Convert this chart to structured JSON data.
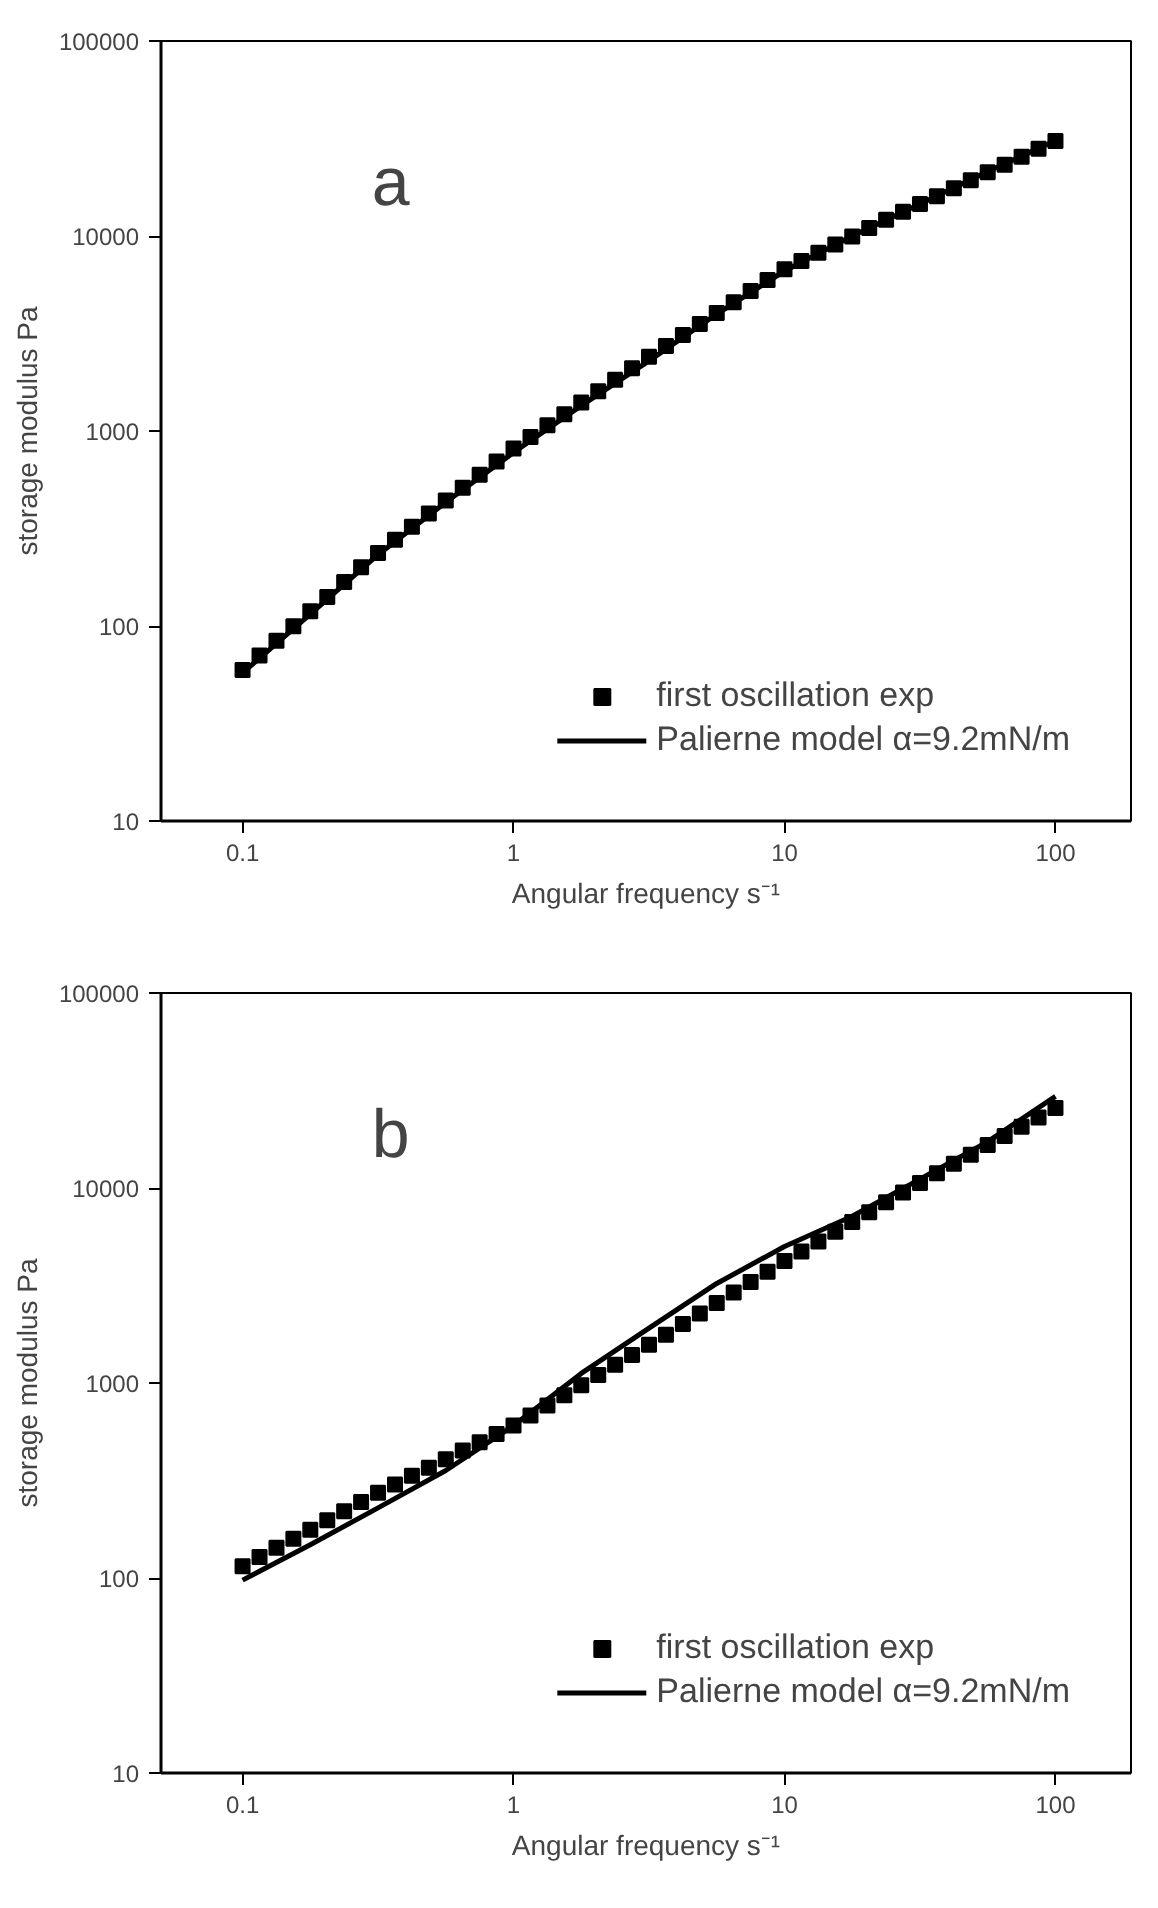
{
  "chart_data": [
    {
      "type": "scatter",
      "xlabel": "Angular frequency s⁻¹",
      "ylabel": "storage modulus Pa",
      "annotations": [
        "a"
      ],
      "log": "xy",
      "grid": false,
      "legend": "bottom right",
      "xlim": [
        0.05,
        190
      ],
      "ylim": [
        10,
        100000
      ],
      "xticks": [
        0.1,
        1,
        10,
        100
      ],
      "yticks": [
        10,
        100,
        1000,
        10000,
        100000
      ],
      "series": [
        {
          "name": "first oscillation exp",
          "type": "scatter",
          "marker": "square",
          "color": "#000000",
          "x": [
            0.1,
            0.1155,
            0.1334,
            0.154,
            0.1778,
            0.2054,
            0.2371,
            0.2738,
            0.3162,
            0.3652,
            0.4217,
            0.487,
            0.5623,
            0.6494,
            0.7499,
            0.866,
            1,
            1.155,
            1.334,
            1.54,
            1.778,
            2.054,
            2.371,
            2.738,
            3.162,
            3.652,
            4.217,
            4.87,
            5.623,
            6.494,
            7.499,
            8.66,
            10,
            11.55,
            13.34,
            15.4,
            17.78,
            20.54,
            23.71,
            27.38,
            31.62,
            36.52,
            42.17,
            48.7,
            56.23,
            64.94,
            74.99,
            86.6,
            100
          ],
          "values": [
            59.4,
            70.6,
            84.0,
            99.8,
            119,
            141,
            168,
            200,
            237,
            277,
            323,
            377,
            440,
            512,
            597,
            697,
            813,
            931,
            1070,
            1220,
            1400,
            1600,
            1830,
            2100,
            2400,
            2730,
            3110,
            3540,
            4030,
            4580,
            5220,
            5940,
            6760,
            7450,
            8200,
            9040,
            9950,
            11000,
            12100,
            13300,
            14600,
            16000,
            17600,
            19300,
            21200,
            23200,
            25500,
            28000,
            30700
          ]
        },
        {
          "name": "Palierne model α=9.2mN/m",
          "type": "line",
          "line_style": "solid",
          "color": "#000000",
          "x": [
            0.1,
            0.1778,
            0.3162,
            0.5623,
            1,
            1.778,
            3.162,
            5.623,
            10,
            17.78,
            31.62,
            56.23,
            100
          ],
          "values": [
            57.5,
            115,
            232,
            431,
            776,
            1350,
            2290,
            3980,
            6610,
            10000,
            14600,
            21400,
            30900
          ]
        }
      ]
    },
    {
      "type": "scatter",
      "xlabel": "Angular frequency s⁻¹",
      "ylabel": "storage modulus Pa",
      "annotations": [
        "b"
      ],
      "log": "xy",
      "grid": false,
      "legend": "bottom right",
      "xlim": [
        0.05,
        190
      ],
      "ylim": [
        10,
        100000
      ],
      "xticks": [
        0.1,
        1,
        10,
        100
      ],
      "yticks": [
        10,
        100,
        1000,
        10000,
        100000
      ],
      "series": [
        {
          "name": "first oscillation exp",
          "type": "scatter",
          "marker": "square",
          "color": "#000000",
          "x": [
            0.1,
            0.1155,
            0.1334,
            0.154,
            0.1778,
            0.2054,
            0.2371,
            0.2738,
            0.3162,
            0.3652,
            0.4217,
            0.487,
            0.5623,
            0.6494,
            0.7499,
            0.866,
            1,
            1.155,
            1.334,
            1.54,
            1.778,
            2.054,
            2.371,
            2.738,
            3.162,
            3.652,
            4.217,
            4.87,
            5.623,
            6.494,
            7.499,
            8.66,
            10,
            11.55,
            13.34,
            15.4,
            17.78,
            20.54,
            23.71,
            27.38,
            31.62,
            36.52,
            42.17,
            48.7,
            56.23,
            64.94,
            74.99,
            86.6,
            100
          ],
          "values": [
            115,
            128,
            143,
            159,
            177,
            198,
            220,
            245,
            274,
            302,
            334,
            368,
            406,
            450,
            497,
            548,
            605,
            682,
            767,
            865,
            975,
            1100,
            1240,
            1390,
            1570,
            1770,
            2010,
            2270,
            2570,
            2910,
            3300,
            3720,
            4220,
            4730,
            5320,
            5970,
            6700,
            7520,
            8450,
            9480,
            10600,
            11900,
            13300,
            14800,
            16600,
            18500,
            20600,
            23000,
            25700
          ]
        },
        {
          "name": "Palierne model α=9.2mN/m",
          "type": "line",
          "line_style": "solid",
          "color": "#000000",
          "x": [
            0.1,
            0.1778,
            0.3162,
            0.5623,
            1,
            1.778,
            3.162,
            5.623,
            10,
            17.78,
            31.62,
            56.23,
            100
          ],
          "values": [
            97.5,
            148,
            229,
            356,
            605,
            1120,
            1910,
            3240,
            5010,
            7160,
            11100,
            17300,
            29500
          ]
        }
      ]
    }
  ]
}
